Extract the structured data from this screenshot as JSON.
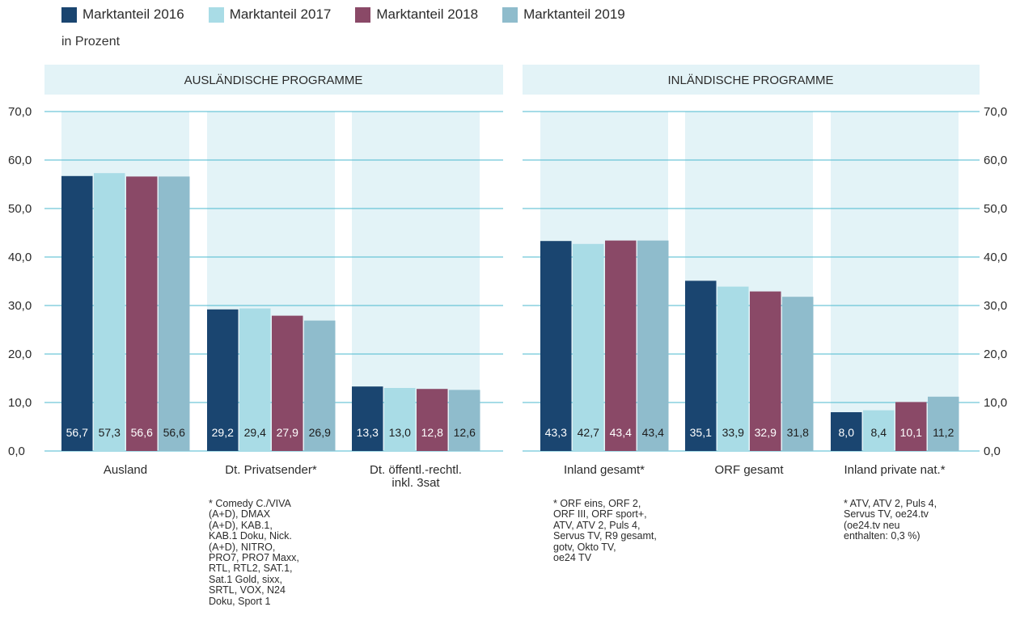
{
  "legend": {
    "items": [
      {
        "label": "Marktanteil 2016",
        "color": "#1a4570"
      },
      {
        "label": "Marktanteil 2017",
        "color": "#a9dce6"
      },
      {
        "label": "Marktanteil 2018",
        "color": "#8a4967"
      },
      {
        "label": "Marktanteil 2019",
        "color": "#8fbccc"
      }
    ]
  },
  "unit_label": "in Prozent",
  "panels": {
    "left_header": "AUSLÄNDISCHE PROGRAMME",
    "right_header": "INLÄNDISCHE PROGRAMME"
  },
  "footnotes": {
    "privatsender": "* Comedy C./VIVA\n(A+D), DMAX\n(A+D), KAB.1,\nKAB.1 Doku, Nick.\n(A+D), NITRO,\nPRO7, PRO7 Maxx,\nRTL, RTL2, SAT.1,\nSat.1 Gold, sixx,\nSRTL, VOX, N24\nDoku, Sport 1",
    "inland_gesamt": "* ORF eins, ORF 2,\nORF III, ORF sport+,\nATV, ATV 2, Puls 4,\nServus TV, R9 gesamt,\ngotv, Okto TV,\noe24 TV",
    "inland_private": "* ATV, ATV 2, Puls 4,\nServus TV, oe24.tv\n(oe24.tv neu\nenthalten: 0,3 %)"
  },
  "chart_data": {
    "type": "bar",
    "ylim": [
      0,
      70
    ],
    "yticks": [
      "0,0",
      "10,0",
      "20,0",
      "30,0",
      "40,0",
      "50,0",
      "60,0",
      "70,0"
    ],
    "grid": true,
    "legend_position": "top-left",
    "categories": [
      "Ausland",
      "Dt. Privatsender*",
      "Dt. öffentl.-rechtl.\ninkl. 3sat",
      "Inland gesamt*",
      "ORF gesamt",
      "Inland private nat.*"
    ],
    "series": [
      {
        "name": "Marktanteil 2016",
        "color": "#1a4570",
        "values": [
          56.7,
          29.2,
          13.3,
          43.3,
          35.1,
          8.0
        ],
        "labels": [
          "56,7",
          "29,2",
          "13,3",
          "43,3",
          "35,1",
          "8,0"
        ]
      },
      {
        "name": "Marktanteil 2017",
        "color": "#a9dce6",
        "values": [
          57.3,
          29.4,
          13.0,
          42.7,
          33.9,
          8.4
        ],
        "labels": [
          "57,3",
          "29,4",
          "13,0",
          "42,7",
          "33,9",
          "8,4"
        ]
      },
      {
        "name": "Marktanteil 2018",
        "color": "#8a4967",
        "values": [
          56.6,
          27.9,
          12.8,
          43.4,
          32.9,
          10.1
        ],
        "labels": [
          "56,6",
          "27,9",
          "12,8",
          "43,4",
          "32,9",
          "10,1"
        ]
      },
      {
        "name": "Marktanteil 2019",
        "color": "#8fbccc",
        "values": [
          56.6,
          26.9,
          12.6,
          43.4,
          31.8,
          11.2
        ],
        "labels": [
          "56,6",
          "26,9",
          "12,6",
          "43,4",
          "31,8",
          "11,2"
        ]
      }
    ]
  }
}
